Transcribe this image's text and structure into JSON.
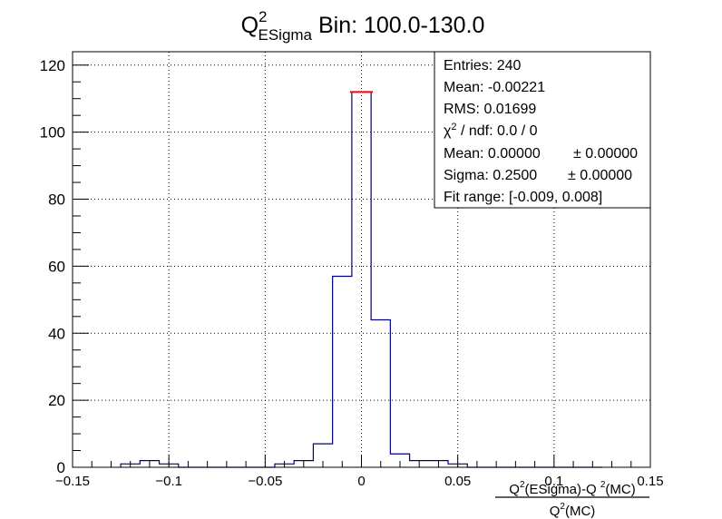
{
  "chart_data": {
    "type": "histogram",
    "title": {
      "main": "Q",
      "sup": "2",
      "sub": "ESigma",
      "rest": " Bin: 100.0-130.0"
    },
    "xlabel": {
      "numerator": {
        "q": "Q",
        "sup1": "2",
        "mid": "(ESigma)-Q ",
        "sup2": "2",
        "end": "(MC)"
      },
      "denominator": {
        "q": "Q",
        "sup": "2",
        "end": "(MC)"
      }
    },
    "ylabel": "",
    "xlim": [
      -0.15,
      0.15
    ],
    "ylim": [
      0,
      124
    ],
    "x_ticks": [
      -0.15,
      -0.1,
      -0.05,
      0,
      0.05,
      0.1,
      0.15
    ],
    "x_tick_labels": [
      "−0.15",
      "−0.1",
      "−0.05",
      "0",
      "0.05",
      "0.1",
      "0.15"
    ],
    "y_ticks": [
      0,
      20,
      40,
      60,
      80,
      100,
      120
    ],
    "y_tick_labels": [
      "0",
      "20",
      "40",
      "60",
      "80",
      "100",
      "120"
    ],
    "grid": true,
    "bin_edges": [
      -0.125,
      -0.115,
      -0.105,
      -0.095,
      -0.085,
      -0.075,
      -0.065,
      -0.055,
      -0.045,
      -0.035,
      -0.025,
      -0.015,
      -0.005,
      0.005,
      0.015,
      0.025,
      0.035,
      0.045,
      0.055,
      0.065,
      0.075,
      0.085,
      0.095,
      0.105,
      0.115,
      0.125
    ],
    "counts": [
      1,
      2,
      1,
      0,
      0,
      0,
      0,
      0,
      1,
      2,
      7,
      57,
      112,
      44,
      4,
      2,
      2,
      1,
      0,
      0,
      0,
      0,
      0,
      0,
      0
    ],
    "line_color": "#000080",
    "fit": {
      "x_range": [
        -0.005,
        0.005
      ],
      "y": 112,
      "color": "#ff0000"
    },
    "stats_box": {
      "position": "top-right",
      "lines": [
        {
          "label": "Entries:",
          "value": "240"
        },
        {
          "label": "Mean:",
          "value": "-0.00221"
        },
        {
          "label": "RMS:",
          "value": "0.01699"
        },
        {
          "label": "χ",
          "sup": "2",
          "rest": " / ndf: 0.0 / 0"
        },
        {
          "label": "Mean: 0.00000",
          "value": "± 0.00000"
        },
        {
          "label": "Sigma: 0.2500",
          "value": "± 0.00000"
        },
        {
          "label": "Fit range: [-0.009, 0.008]"
        }
      ]
    }
  }
}
